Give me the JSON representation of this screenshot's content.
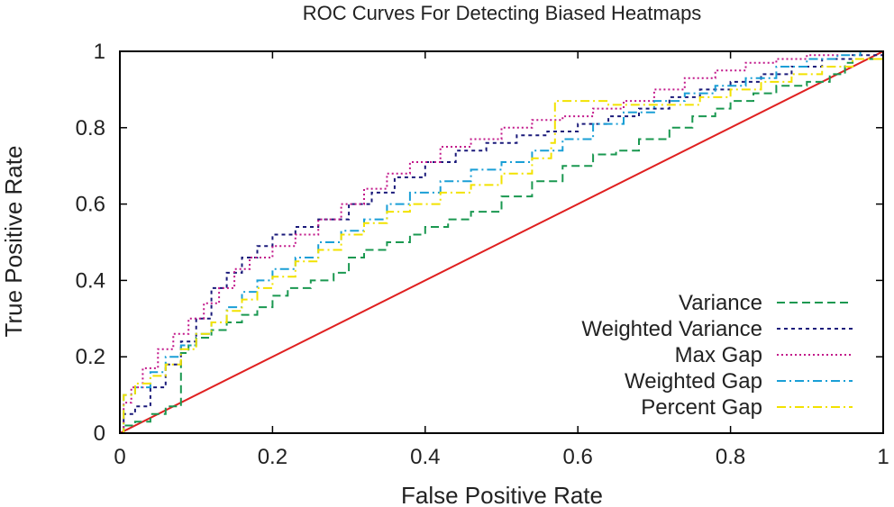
{
  "chart_data": {
    "type": "line",
    "title": "ROC Curves For Detecting Biased Heatmaps",
    "xlabel": "False Positive Rate",
    "ylabel": "True Positive Rate",
    "xlim": [
      0,
      1
    ],
    "ylim": [
      0,
      1
    ],
    "x_ticks": [
      "0",
      "0.2",
      "0.4",
      "0.6",
      "0.8",
      "1"
    ],
    "y_ticks": [
      "0",
      "0.2",
      "0.4",
      "0.6",
      "0.8",
      "1"
    ],
    "grid": false,
    "legend_position": "bottom-right",
    "reference_line": {
      "x": [
        0,
        1
      ],
      "y": [
        0,
        1
      ],
      "color": "#e02020"
    },
    "series": [
      {
        "name": "Variance",
        "color": "#1a9850",
        "dash": "9,5",
        "x": [
          0,
          0.005,
          0.02,
          0.04,
          0.06,
          0.08,
          0.08,
          0.09,
          0.1,
          0.12,
          0.14,
          0.16,
          0.18,
          0.2,
          0.22,
          0.25,
          0.28,
          0.3,
          0.32,
          0.35,
          0.38,
          0.4,
          0.43,
          0.46,
          0.5,
          0.54,
          0.58,
          0.62,
          0.65,
          0.68,
          0.72,
          0.75,
          0.78,
          0.8,
          0.83,
          0.86,
          0.9,
          0.93,
          0.95,
          0.96,
          1.0
        ],
        "y": [
          0,
          0.02,
          0.03,
          0.05,
          0.07,
          0.09,
          0.21,
          0.23,
          0.25,
          0.27,
          0.29,
          0.31,
          0.33,
          0.36,
          0.38,
          0.4,
          0.42,
          0.46,
          0.48,
          0.5,
          0.52,
          0.54,
          0.56,
          0.58,
          0.62,
          0.66,
          0.7,
          0.73,
          0.74,
          0.77,
          0.8,
          0.83,
          0.85,
          0.87,
          0.89,
          0.91,
          0.92,
          0.94,
          0.97,
          0.98,
          1.0
        ]
      },
      {
        "name": "Weighted Variance",
        "color": "#1a1a7a",
        "dash": "4,4",
        "x": [
          0,
          0.005,
          0.02,
          0.04,
          0.06,
          0.08,
          0.1,
          0.12,
          0.14,
          0.16,
          0.18,
          0.2,
          0.23,
          0.26,
          0.28,
          0.3,
          0.33,
          0.36,
          0.4,
          0.44,
          0.48,
          0.52,
          0.56,
          0.6,
          0.64,
          0.68,
          0.72,
          0.76,
          0.8,
          0.84,
          0.88,
          0.92,
          0.96,
          1.0
        ],
        "y": [
          0,
          0.05,
          0.07,
          0.12,
          0.18,
          0.24,
          0.3,
          0.38,
          0.42,
          0.46,
          0.49,
          0.52,
          0.54,
          0.56,
          0.56,
          0.6,
          0.63,
          0.67,
          0.71,
          0.74,
          0.76,
          0.78,
          0.79,
          0.81,
          0.83,
          0.85,
          0.88,
          0.9,
          0.92,
          0.94,
          0.96,
          0.98,
          0.99,
          1.0
        ]
      },
      {
        "name": "Max Gap",
        "color": "#c2188a",
        "dash": "2,3",
        "x": [
          0,
          0.005,
          0.015,
          0.03,
          0.05,
          0.07,
          0.09,
          0.11,
          0.13,
          0.15,
          0.17,
          0.2,
          0.23,
          0.26,
          0.29,
          0.32,
          0.35,
          0.38,
          0.42,
          0.46,
          0.5,
          0.54,
          0.58,
          0.62,
          0.66,
          0.7,
          0.74,
          0.78,
          0.82,
          0.86,
          0.9,
          0.94,
          1.0
        ],
        "y": [
          0,
          0.08,
          0.12,
          0.17,
          0.22,
          0.26,
          0.3,
          0.34,
          0.38,
          0.43,
          0.46,
          0.49,
          0.52,
          0.56,
          0.6,
          0.64,
          0.68,
          0.71,
          0.75,
          0.77,
          0.8,
          0.82,
          0.83,
          0.85,
          0.87,
          0.9,
          0.93,
          0.95,
          0.97,
          0.98,
          0.99,
          1.0,
          1.0
        ]
      },
      {
        "name": "Weighted Gap",
        "color": "#1a9fd6",
        "dash": "10,4,2,4",
        "x": [
          0,
          0.005,
          0.02,
          0.04,
          0.06,
          0.08,
          0.1,
          0.12,
          0.14,
          0.16,
          0.18,
          0.2,
          0.23,
          0.26,
          0.29,
          0.32,
          0.35,
          0.38,
          0.42,
          0.46,
          0.5,
          0.54,
          0.58,
          0.62,
          0.66,
          0.7,
          0.74,
          0.78,
          0.82,
          0.86,
          0.9,
          0.94,
          0.97,
          1.0
        ],
        "y": [
          0,
          0.1,
          0.12,
          0.16,
          0.2,
          0.23,
          0.26,
          0.29,
          0.33,
          0.37,
          0.4,
          0.43,
          0.46,
          0.5,
          0.53,
          0.56,
          0.6,
          0.63,
          0.66,
          0.69,
          0.71,
          0.74,
          0.77,
          0.81,
          0.84,
          0.87,
          0.89,
          0.91,
          0.93,
          0.96,
          0.98,
          0.99,
          1.0,
          1.0
        ]
      },
      {
        "name": "Percent Gap",
        "color": "#f2e200",
        "dash": "10,4,2,4",
        "x": [
          0,
          0.005,
          0.02,
          0.04,
          0.06,
          0.08,
          0.1,
          0.12,
          0.14,
          0.16,
          0.18,
          0.2,
          0.23,
          0.26,
          0.29,
          0.32,
          0.35,
          0.38,
          0.42,
          0.46,
          0.5,
          0.54,
          0.565,
          0.57,
          0.6,
          0.64,
          0.68,
          0.72,
          0.76,
          0.8,
          0.84,
          0.88,
          0.92,
          0.96,
          1.0
        ],
        "y": [
          0,
          0.1,
          0.13,
          0.15,
          0.18,
          0.22,
          0.26,
          0.29,
          0.32,
          0.35,
          0.38,
          0.41,
          0.45,
          0.48,
          0.52,
          0.55,
          0.58,
          0.6,
          0.63,
          0.65,
          0.68,
          0.72,
          0.76,
          0.87,
          0.87,
          0.86,
          0.86,
          0.86,
          0.88,
          0.9,
          0.92,
          0.94,
          0.96,
          0.98,
          1.0
        ]
      }
    ]
  }
}
